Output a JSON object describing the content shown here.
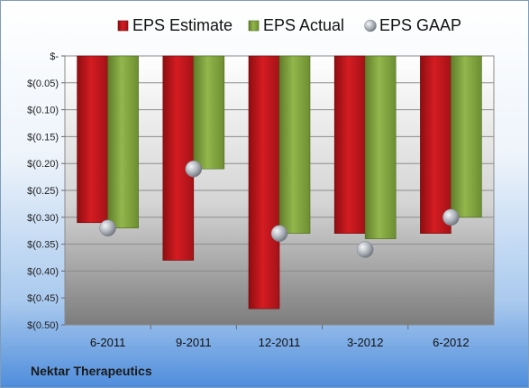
{
  "company_name": "Nektar Therapeutics",
  "colors": {
    "estimate": "#c0161b",
    "actual": "#84a640",
    "gaap": "#b7bcc4"
  },
  "chart_data": {
    "type": "bar",
    "categories": [
      "6-2011",
      "9-2011",
      "12-2011",
      "3-2012",
      "6-2012"
    ],
    "series": [
      {
        "name": "EPS Estimate",
        "values": [
          -0.31,
          -0.38,
          -0.47,
          -0.33,
          -0.33
        ]
      },
      {
        "name": "EPS Actual",
        "values": [
          -0.32,
          -0.21,
          -0.33,
          -0.34,
          -0.3
        ]
      },
      {
        "name": "EPS GAAP",
        "kind": "marker",
        "values": [
          -0.32,
          -0.21,
          -0.33,
          -0.36,
          -0.3
        ]
      }
    ],
    "ylim": [
      -0.5,
      0
    ],
    "yticks": [
      0,
      -0.05,
      -0.1,
      -0.15,
      -0.2,
      -0.25,
      -0.3,
      -0.35,
      -0.4,
      -0.45,
      -0.5
    ],
    "ytick_labels": [
      "$-",
      "$(0.05)",
      "$(0.10)",
      "$(0.15)",
      "$(0.20)",
      "$(0.25)",
      "$(0.30)",
      "$(0.35)",
      "$(0.40)",
      "$(0.45)",
      "$(0.50)"
    ],
    "legend_position": "top",
    "grid": true
  }
}
